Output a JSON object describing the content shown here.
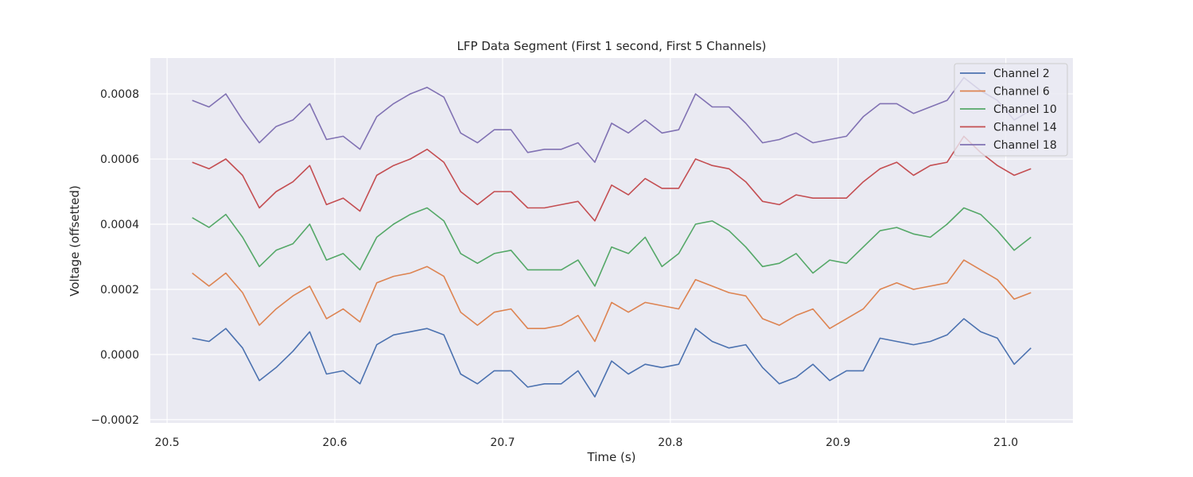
{
  "chart_data": {
    "type": "line",
    "title": "LFP Data Segment (First 1 second, First 5 Channels)",
    "xlabel": "Time (s)",
    "ylabel": "Voltage (offsetted)",
    "xlim": [
      20.49,
      21.04
    ],
    "ylim": [
      -0.00021,
      0.00091
    ],
    "x_ticks": [
      20.5,
      20.6,
      20.7,
      20.8,
      20.9,
      21.0
    ],
    "x_tick_labels": [
      "20.5",
      "20.6",
      "20.7",
      "20.8",
      "20.9",
      "21.0"
    ],
    "y_ticks": [
      -0.0002,
      0.0,
      0.0002,
      0.0004,
      0.0006,
      0.0008
    ],
    "y_tick_labels": [
      "−0.0002",
      "0.0000",
      "0.0002",
      "0.0004",
      "0.0006",
      "0.0008"
    ],
    "grid": true,
    "legend_position": "top-right",
    "x": [
      20.515,
      20.525,
      20.535,
      20.545,
      20.555,
      20.565,
      20.575,
      20.585,
      20.595,
      20.605,
      20.615,
      20.625,
      20.635,
      20.645,
      20.655,
      20.665,
      20.675,
      20.685,
      20.695,
      20.705,
      20.715,
      20.725,
      20.735,
      20.745,
      20.755,
      20.765,
      20.775,
      20.785,
      20.795,
      20.805,
      20.815,
      20.825,
      20.835,
      20.845,
      20.855,
      20.865,
      20.875,
      20.885,
      20.895,
      20.905,
      20.915,
      20.925,
      20.935,
      20.945,
      20.955,
      20.965,
      20.975,
      20.985,
      20.995,
      21.005,
      21.015
    ],
    "series": [
      {
        "name": "Channel 2",
        "color": "#4c72b0",
        "values": [
          5e-05,
          4e-05,
          8e-05,
          2e-05,
          -8e-05,
          -4e-05,
          1e-05,
          7e-05,
          -6e-05,
          -5e-05,
          -9e-05,
          3e-05,
          6e-05,
          7e-05,
          8e-05,
          6e-05,
          -6e-05,
          -9e-05,
          -5e-05,
          -5e-05,
          -0.0001,
          -9e-05,
          -9e-05,
          -5e-05,
          -0.00013,
          -2e-05,
          -6e-05,
          -3e-05,
          -4e-05,
          -3e-05,
          8e-05,
          4e-05,
          2e-05,
          3e-05,
          -4e-05,
          -9e-05,
          -7e-05,
          -3e-05,
          -8e-05,
          -5e-05,
          -5e-05,
          5e-05,
          4e-05,
          3e-05,
          4e-05,
          6e-05,
          0.00011,
          7e-05,
          5e-05,
          -3e-05,
          2e-05
        ]
      },
      {
        "name": "Channel 6",
        "color": "#dd8452",
        "values": [
          0.00025,
          0.00021,
          0.00025,
          0.00019,
          9e-05,
          0.00014,
          0.00018,
          0.00021,
          0.00011,
          0.00014,
          0.0001,
          0.00022,
          0.00024,
          0.00025,
          0.00027,
          0.00024,
          0.00013,
          9e-05,
          0.00013,
          0.00014,
          8e-05,
          8e-05,
          9e-05,
          0.00012,
          4e-05,
          0.00016,
          0.00013,
          0.00016,
          0.00015,
          0.00014,
          0.00023,
          0.00021,
          0.00019,
          0.00018,
          0.00011,
          9e-05,
          0.00012,
          0.00014,
          8e-05,
          0.00011,
          0.00014,
          0.0002,
          0.00022,
          0.0002,
          0.00021,
          0.00022,
          0.00029,
          0.00026,
          0.00023,
          0.00017,
          0.00019
        ]
      },
      {
        "name": "Channel 10",
        "color": "#55a868",
        "values": [
          0.00042,
          0.00039,
          0.00043,
          0.00036,
          0.00027,
          0.00032,
          0.00034,
          0.0004,
          0.00029,
          0.00031,
          0.00026,
          0.00036,
          0.0004,
          0.00043,
          0.00045,
          0.00041,
          0.00031,
          0.00028,
          0.00031,
          0.00032,
          0.00026,
          0.00026,
          0.00026,
          0.00029,
          0.00021,
          0.00033,
          0.00031,
          0.00036,
          0.00027,
          0.00031,
          0.0004,
          0.00041,
          0.00038,
          0.00033,
          0.00027,
          0.00028,
          0.00031,
          0.00025,
          0.00029,
          0.00028,
          0.00033,
          0.00038,
          0.00039,
          0.00037,
          0.00036,
          0.0004,
          0.00045,
          0.00043,
          0.00038,
          0.00032,
          0.00036
        ]
      },
      {
        "name": "Channel 14",
        "color": "#c44e52",
        "values": [
          0.00059,
          0.00057,
          0.0006,
          0.00055,
          0.00045,
          0.0005,
          0.00053,
          0.00058,
          0.00046,
          0.00048,
          0.00044,
          0.00055,
          0.00058,
          0.0006,
          0.00063,
          0.00059,
          0.0005,
          0.00046,
          0.0005,
          0.0005,
          0.00045,
          0.00045,
          0.00046,
          0.00047,
          0.00041,
          0.00052,
          0.00049,
          0.00054,
          0.00051,
          0.00051,
          0.0006,
          0.00058,
          0.00057,
          0.00053,
          0.00047,
          0.00046,
          0.00049,
          0.00048,
          0.00048,
          0.00048,
          0.00053,
          0.00057,
          0.00059,
          0.00055,
          0.00058,
          0.00059,
          0.00067,
          0.00062,
          0.00058,
          0.00055,
          0.00057
        ]
      },
      {
        "name": "Channel 18",
        "color": "#8172b3",
        "values": [
          0.00078,
          0.00076,
          0.0008,
          0.00072,
          0.00065,
          0.0007,
          0.00072,
          0.00077,
          0.00066,
          0.00067,
          0.00063,
          0.00073,
          0.00077,
          0.0008,
          0.00082,
          0.00079,
          0.00068,
          0.00065,
          0.00069,
          0.00069,
          0.00062,
          0.00063,
          0.00063,
          0.00065,
          0.00059,
          0.00071,
          0.00068,
          0.00072,
          0.00068,
          0.00069,
          0.0008,
          0.00076,
          0.00076,
          0.00071,
          0.00065,
          0.00066,
          0.00068,
          0.00065,
          0.00066,
          0.00067,
          0.00073,
          0.00077,
          0.00077,
          0.00074,
          0.00076,
          0.00078,
          0.00085,
          0.00081,
          0.00078,
          0.00072,
          0.00075
        ]
      }
    ]
  }
}
